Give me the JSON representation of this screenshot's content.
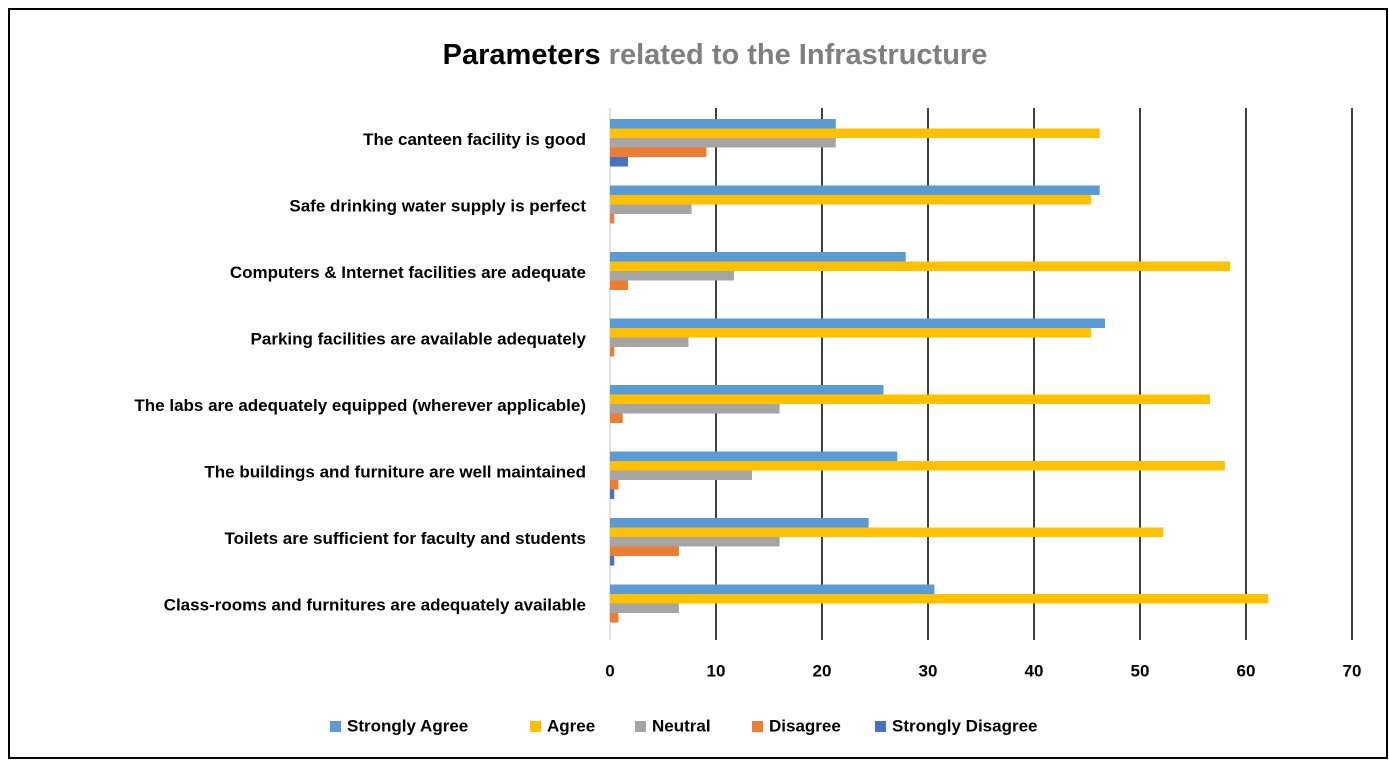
{
  "chart_data": {
    "type": "bar",
    "orientation": "horizontal",
    "title": [
      "Parameters",
      "related to the Infrastructure"
    ],
    "categories": [
      "The canteen facility is good",
      "Safe drinking water supply is perfect",
      "Computers & Internet facilities are adequate",
      "Parking facilities are available adequately",
      "The labs are adequately equipped (wherever applicable)",
      "The buildings and furniture are well maintained",
      "Toilets are sufficient for faculty and students",
      "Class-rooms and furnitures are adequately available"
    ],
    "series": [
      {
        "name": "Strongly Agree",
        "color": "#5b9bd5",
        "values": [
          21.3,
          46.2,
          27.9,
          46.7,
          25.8,
          27.1,
          24.4,
          30.6
        ]
      },
      {
        "name": "Agree",
        "color": "#ffc000",
        "values": [
          46.2,
          45.4,
          58.5,
          45.4,
          56.6,
          58.0,
          52.2,
          62.1
        ]
      },
      {
        "name": "Neutral",
        "color": "#a5a5a5",
        "values": [
          21.3,
          7.7,
          11.7,
          7.4,
          16.0,
          13.4,
          16.0,
          6.5
        ]
      },
      {
        "name": "Disagree",
        "color": "#ed7d31",
        "values": [
          9.1,
          0.4,
          1.7,
          0.4,
          1.2,
          0.8,
          6.5,
          0.8
        ]
      },
      {
        "name": "Strongly Disagree",
        "color": "#4472c4",
        "values": [
          1.7,
          0,
          0,
          0,
          0,
          0.4,
          0.4,
          0
        ]
      }
    ],
    "xlim": [
      0,
      70
    ],
    "xticks": [
      0,
      10,
      20,
      30,
      40,
      50,
      60,
      70
    ],
    "grid": true,
    "legend": "bottom"
  }
}
